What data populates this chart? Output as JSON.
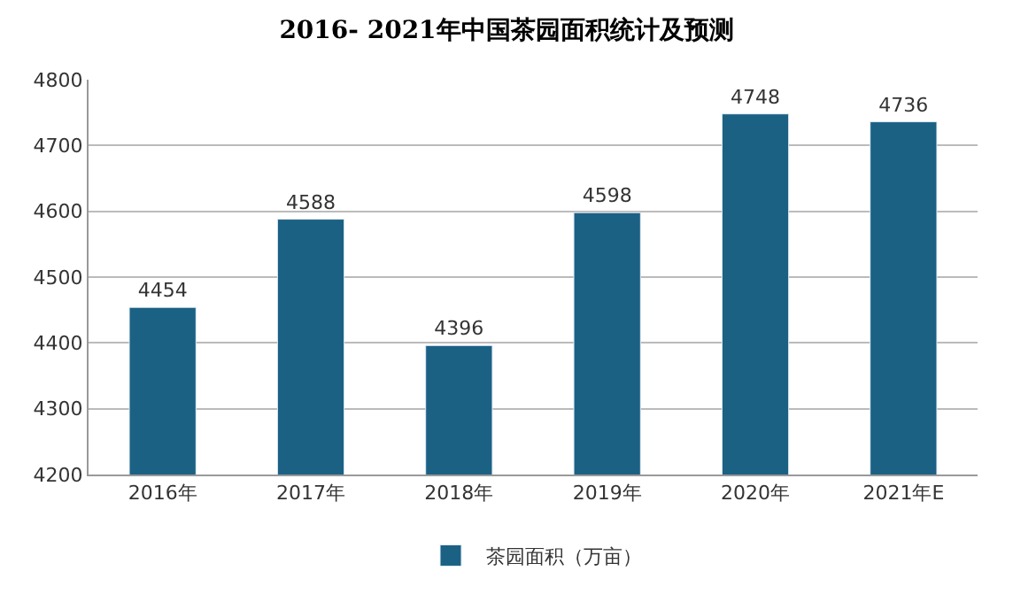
{
  "chart_data": {
    "type": "bar",
    "title": "2016- 2021年中国茶园面积统计及预测",
    "categories": [
      "2016年",
      "2017年",
      "2018年",
      "2019年",
      "2020年",
      "2021年E"
    ],
    "series": [
      {
        "name": "茶园面积（万亩）",
        "color": "#1b6184",
        "values": [
          4454,
          4588,
          4396,
          4598,
          4748,
          4736
        ]
      }
    ],
    "ylim": [
      4200,
      4800
    ],
    "yticks": [
      4200,
      4300,
      4400,
      4500,
      4600,
      4700,
      4800
    ],
    "grid": "y",
    "legend": "bottom",
    "data_labels": true
  }
}
